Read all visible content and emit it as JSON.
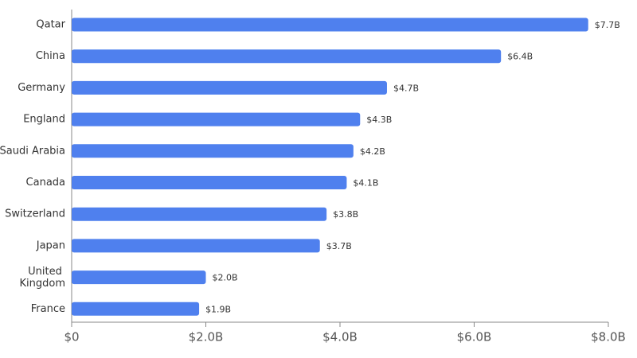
{
  "chart_data": {
    "type": "bar",
    "orientation": "horizontal",
    "categories": [
      "Qatar",
      "China",
      "Germany",
      "England",
      "Saudi Arabia",
      "Canada",
      "Switzerland",
      "Japan",
      "United Kingdom",
      "France"
    ],
    "values": [
      7.7,
      6.4,
      4.7,
      4.3,
      4.2,
      4.1,
      3.8,
      3.7,
      2.0,
      1.9
    ],
    "value_labels": [
      "$7.7B",
      "$6.4B",
      "$4.7B",
      "$4.3B",
      "$4.2B",
      "$4.1B",
      "$3.8B",
      "$3.7B",
      "$2.0B",
      "$1.9B"
    ],
    "color": "#4f80ee",
    "xlim": [
      0,
      8
    ],
    "xticks": [
      {
        "value": 0,
        "label": "$0"
      },
      {
        "value": 2,
        "label": "$2.0B"
      },
      {
        "value": 4,
        "label": "$4.0B"
      },
      {
        "value": 6,
        "label": "$6.0B"
      },
      {
        "value": 8,
        "label": "$8.0B"
      }
    ],
    "grid": false
  }
}
